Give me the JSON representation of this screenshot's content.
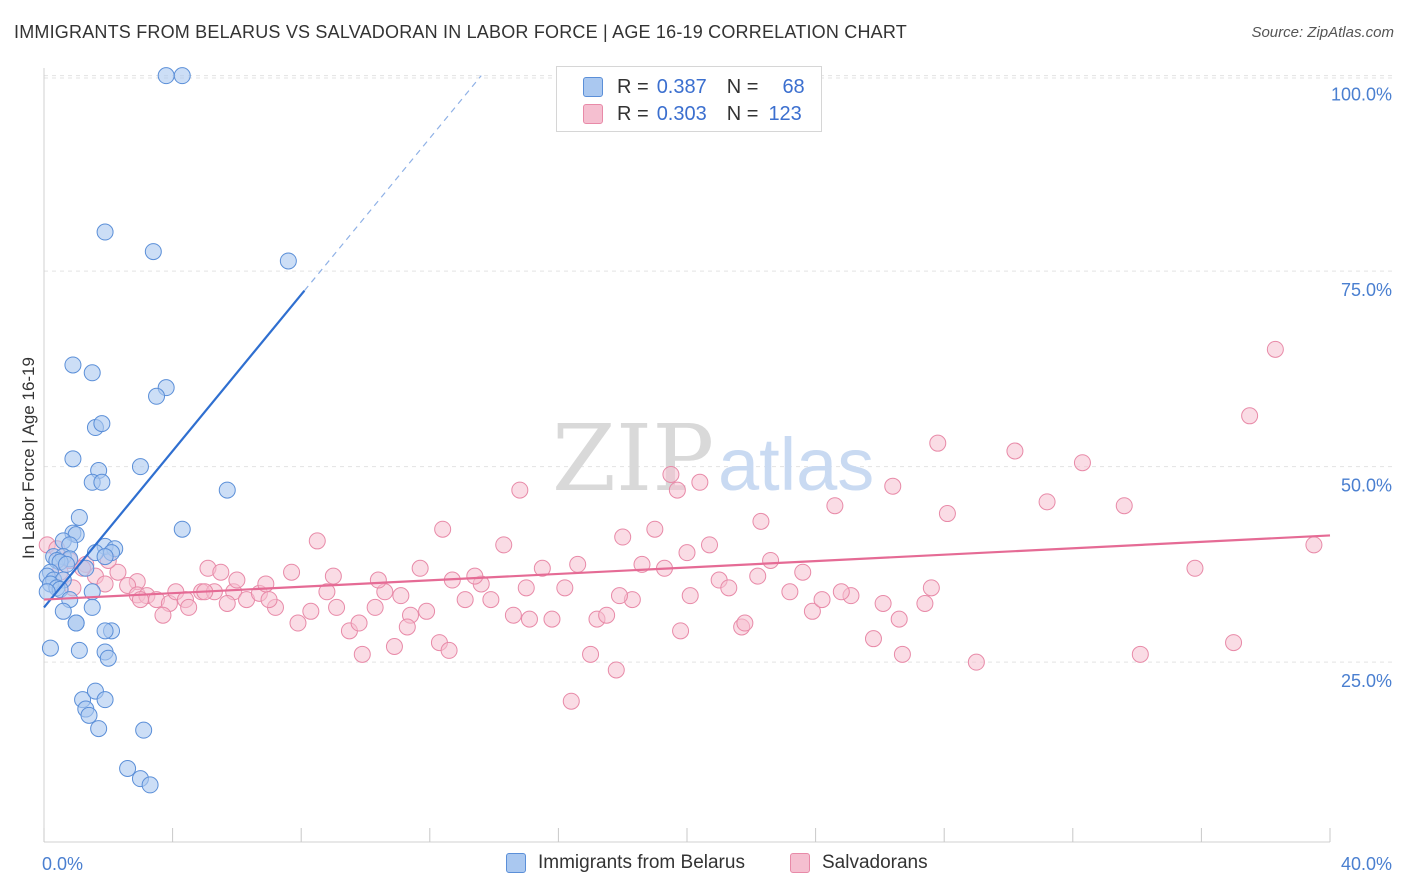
{
  "title": "IMMIGRANTS FROM BELARUS VS SALVADORAN IN LABOR FORCE | AGE 16-19 CORRELATION CHART",
  "source": "Source: ZipAtlas.com",
  "watermark": {
    "zip": "ZIP",
    "atlas": "atlas"
  },
  "legend": {
    "rows": [
      {
        "r_label": "R =",
        "r_value": "0.387",
        "n_label": "N =",
        "n_value": "68"
      },
      {
        "r_label": "R =",
        "r_value": "0.303",
        "n_label": "N =",
        "n_value": "123"
      }
    ]
  },
  "colors": {
    "blue_fill": "#aac8f0",
    "blue_stroke": "#5b8fd8",
    "blue_line": "#2f6fd0",
    "pink_fill": "#f5bfd0",
    "pink_stroke": "#e88aa8",
    "pink_line": "#e56b95",
    "tick_text": "#4a7fd0",
    "grid": "#e3e3e3"
  },
  "chart_data": {
    "type": "scatter",
    "ylabel": "In Labor Force | Age 16-19",
    "xlabel": "",
    "xlim": [
      0,
      40
    ],
    "ylim": [
      2,
      102
    ],
    "x_ticks": [
      "0.0%",
      "40.0%"
    ],
    "y_ticks": [
      {
        "value": 25,
        "label": "25.0%"
      },
      {
        "value": 50,
        "label": "50.0%"
      },
      {
        "value": 75,
        "label": "75.0%"
      },
      {
        "value": 100,
        "label": "100.0%"
      }
    ],
    "grid": "horizontal dashed",
    "series": [
      {
        "name": "Immigrants from Belarus",
        "color": "#aac8f0",
        "trend": {
          "x0": 0.0,
          "y0": 32.0,
          "x1": 8.1,
          "y1": 72.5,
          "dash_to_x": 13.6,
          "dash_to_y": 100
        },
        "points": [
          [
            3.8,
            100.0
          ],
          [
            4.3,
            100.0
          ],
          [
            1.9,
            80.0
          ],
          [
            3.4,
            77.5
          ],
          [
            7.6,
            76.3
          ],
          [
            0.9,
            63.0
          ],
          [
            1.5,
            62.0
          ],
          [
            3.8,
            60.1
          ],
          [
            3.5,
            59.0
          ],
          [
            1.6,
            55.0
          ],
          [
            1.8,
            55.5
          ],
          [
            0.9,
            51.0
          ],
          [
            3.0,
            50.0
          ],
          [
            1.7,
            49.5
          ],
          [
            1.5,
            48.0
          ],
          [
            1.8,
            48.0
          ],
          [
            5.7,
            47.0
          ],
          [
            1.1,
            43.5
          ],
          [
            4.3,
            42.0
          ],
          [
            0.9,
            41.5
          ],
          [
            1.0,
            41.3
          ],
          [
            0.6,
            40.5
          ],
          [
            0.8,
            40.0
          ],
          [
            1.9,
            39.8
          ],
          [
            2.2,
            39.5
          ],
          [
            1.6,
            39.0
          ],
          [
            2.1,
            39.0
          ],
          [
            0.3,
            38.5
          ],
          [
            0.6,
            38.5
          ],
          [
            0.8,
            38.2
          ],
          [
            1.9,
            38.5
          ],
          [
            0.4,
            38.0
          ],
          [
            0.5,
            37.8
          ],
          [
            0.7,
            37.5
          ],
          [
            1.3,
            37.0
          ],
          [
            0.2,
            36.5
          ],
          [
            0.1,
            36.0
          ],
          [
            0.3,
            35.5
          ],
          [
            0.6,
            35.5
          ],
          [
            0.2,
            35.0
          ],
          [
            0.4,
            34.5
          ],
          [
            0.5,
            34.3
          ],
          [
            0.1,
            34.0
          ],
          [
            1.5,
            34.0
          ],
          [
            0.8,
            33.0
          ],
          [
            1.5,
            32.0
          ],
          [
            0.6,
            31.5
          ],
          [
            1.0,
            30.0
          ],
          [
            1.0,
            30.0
          ],
          [
            2.1,
            29.0
          ],
          [
            1.9,
            29.0
          ],
          [
            0.2,
            26.8
          ],
          [
            1.1,
            26.5
          ],
          [
            1.9,
            26.3
          ],
          [
            2.0,
            25.5
          ],
          [
            1.2,
            20.2
          ],
          [
            1.6,
            21.3
          ],
          [
            1.9,
            20.2
          ],
          [
            1.3,
            19.0
          ],
          [
            1.4,
            18.2
          ],
          [
            1.7,
            16.5
          ],
          [
            3.1,
            16.3
          ],
          [
            2.6,
            11.4
          ],
          [
            3.0,
            10.1
          ],
          [
            3.3,
            9.3
          ]
        ]
      },
      {
        "name": "Salvadorans",
        "color": "#f5bfd0",
        "trend": {
          "x0": 0.0,
          "y0": 33.0,
          "x1": 40.0,
          "y1": 41.2
        },
        "points": [
          [
            0.1,
            40.0
          ],
          [
            0.4,
            39.5
          ],
          [
            0.8,
            38.0
          ],
          [
            1.3,
            37.5
          ],
          [
            0.5,
            36.5
          ],
          [
            2.3,
            36.5
          ],
          [
            1.6,
            36.0
          ],
          [
            2.9,
            35.3
          ],
          [
            1.9,
            35.0
          ],
          [
            2.6,
            34.8
          ],
          [
            2.9,
            33.6
          ],
          [
            3.2,
            33.5
          ],
          [
            3.5,
            33.0
          ],
          [
            3.9,
            32.5
          ],
          [
            3.7,
            31.0
          ],
          [
            4.1,
            34.0
          ],
          [
            4.4,
            33.0
          ],
          [
            4.9,
            34.0
          ],
          [
            5.1,
            37.0
          ],
          [
            5.5,
            36.5
          ],
          [
            5.3,
            34.0
          ],
          [
            5.9,
            34.0
          ],
          [
            5.7,
            32.5
          ],
          [
            6.3,
            33.0
          ],
          [
            6.7,
            33.8
          ],
          [
            6.9,
            35.0
          ],
          [
            7.2,
            32.0
          ],
          [
            7.7,
            36.5
          ],
          [
            7.9,
            30.0
          ],
          [
            8.3,
            31.5
          ],
          [
            8.8,
            34.0
          ],
          [
            9.1,
            32.0
          ],
          [
            9.5,
            29.0
          ],
          [
            9.8,
            30.0
          ],
          [
            9.9,
            26.0
          ],
          [
            10.3,
            32.0
          ],
          [
            10.6,
            34.0
          ],
          [
            11.1,
            33.5
          ],
          [
            10.9,
            27.0
          ],
          [
            11.4,
            31.0
          ],
          [
            11.7,
            37.0
          ],
          [
            11.9,
            31.5
          ],
          [
            12.3,
            27.5
          ],
          [
            12.6,
            26.5
          ],
          [
            12.7,
            35.5
          ],
          [
            13.1,
            33.0
          ],
          [
            13.6,
            35.0
          ],
          [
            13.9,
            33.0
          ],
          [
            14.3,
            40.0
          ],
          [
            14.6,
            31.0
          ],
          [
            14.8,
            47.0
          ],
          [
            15.1,
            30.5
          ],
          [
            15.5,
            37.0
          ],
          [
            15.8,
            30.5
          ],
          [
            16.2,
            34.5
          ],
          [
            16.6,
            37.5
          ],
          [
            17.0,
            26.0
          ],
          [
            17.2,
            30.5
          ],
          [
            17.5,
            31.0
          ],
          [
            17.8,
            24.0
          ],
          [
            18.0,
            41.0
          ],
          [
            18.3,
            33.0
          ],
          [
            18.6,
            37.5
          ],
          [
            19.0,
            42.0
          ],
          [
            19.3,
            37.0
          ],
          [
            19.5,
            49.0
          ],
          [
            19.7,
            47.0
          ],
          [
            20.1,
            33.5
          ],
          [
            20.4,
            48.0
          ],
          [
            20.7,
            40.0
          ],
          [
            21.0,
            35.5
          ],
          [
            21.3,
            34.5
          ],
          [
            21.7,
            29.5
          ],
          [
            21.8,
            30.0
          ],
          [
            22.2,
            36.0
          ],
          [
            22.3,
            43.0
          ],
          [
            22.6,
            38.0
          ],
          [
            23.2,
            34.0
          ],
          [
            23.6,
            36.5
          ],
          [
            23.9,
            31.5
          ],
          [
            24.2,
            33.0
          ],
          [
            24.6,
            45.0
          ],
          [
            25.1,
            33.5
          ],
          [
            25.8,
            28.0
          ],
          [
            26.1,
            32.5
          ],
          [
            26.4,
            47.5
          ],
          [
            26.6,
            30.5
          ],
          [
            26.7,
            26.0
          ],
          [
            27.4,
            32.5
          ],
          [
            27.6,
            34.5
          ],
          [
            27.8,
            53.0
          ],
          [
            28.1,
            44.0
          ],
          [
            29.0,
            25.0
          ],
          [
            30.2,
            52.0
          ],
          [
            31.2,
            45.5
          ],
          [
            32.3,
            50.5
          ],
          [
            33.6,
            45.0
          ],
          [
            34.1,
            26.0
          ],
          [
            35.8,
            37.0
          ],
          [
            37.0,
            27.5
          ],
          [
            37.5,
            56.5
          ],
          [
            38.3,
            65.0
          ],
          [
            39.5,
            40.0
          ],
          [
            16.4,
            20.0
          ],
          [
            20.0,
            39.0
          ],
          [
            12.4,
            42.0
          ],
          [
            8.5,
            40.5
          ],
          [
            6.0,
            35.5
          ],
          [
            3.0,
            33.0
          ],
          [
            1.2,
            37.0
          ],
          [
            2.0,
            38.0
          ],
          [
            0.9,
            34.5
          ],
          [
            4.5,
            32.0
          ],
          [
            9.0,
            36.0
          ],
          [
            13.4,
            36.0
          ],
          [
            11.3,
            29.5
          ],
          [
            24.8,
            34.0
          ],
          [
            17.9,
            33.5
          ],
          [
            15.0,
            34.5
          ],
          [
            10.4,
            35.5
          ],
          [
            5.0,
            34.0
          ],
          [
            7.0,
            33.0
          ],
          [
            19.8,
            29.0
          ]
        ]
      }
    ]
  }
}
